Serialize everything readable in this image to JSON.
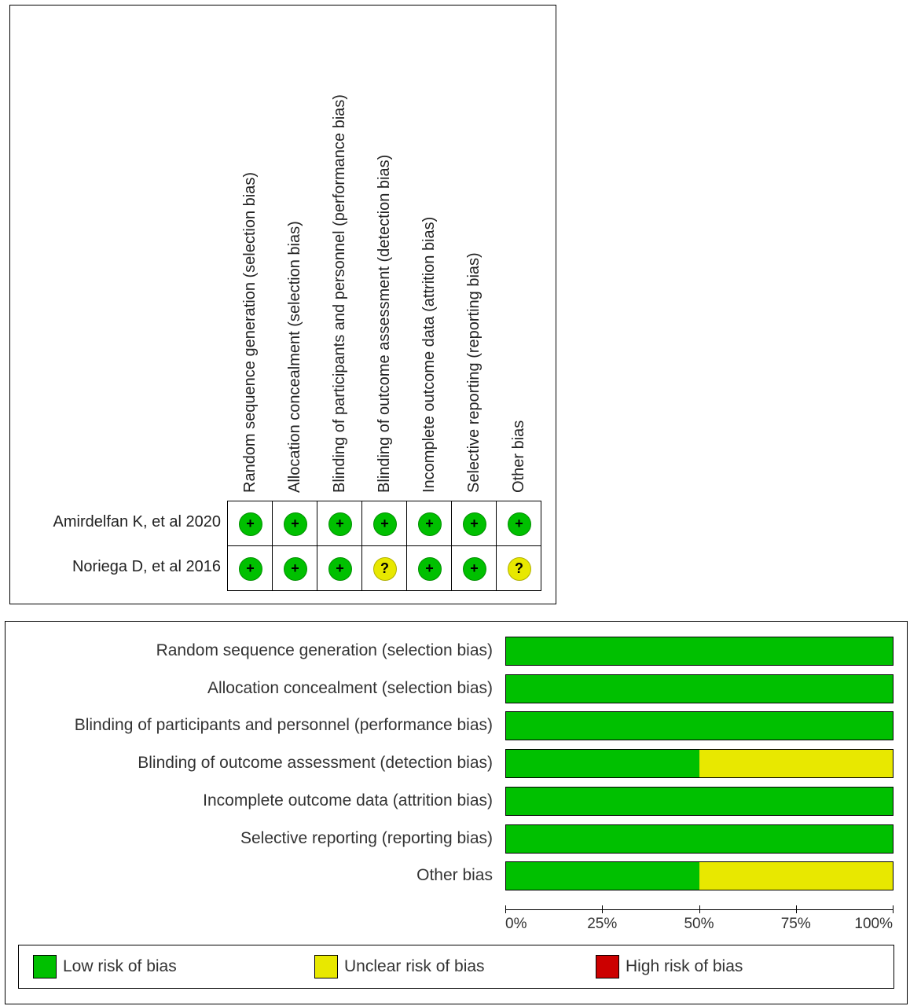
{
  "colors": {
    "low": "#00c000",
    "unclear": "#e8e800",
    "high": "#cc0000"
  },
  "chart_data": [
    {
      "type": "table",
      "columns": [
        "Random sequence generation (selection bias)",
        "Allocation concealment (selection bias)",
        "Blinding of participants and personnel (performance bias)",
        "Blinding of outcome assessment (detection bias)",
        "Incomplete outcome data (attrition bias)",
        "Selective reporting (reporting bias)",
        "Other bias"
      ],
      "rows": [
        {
          "study": "Amirdelfan K, et al 2020",
          "ratings": [
            "low",
            "low",
            "low",
            "low",
            "low",
            "low",
            "low"
          ]
        },
        {
          "study": "Noriega D, et al 2016",
          "ratings": [
            "low",
            "low",
            "low",
            "unclear",
            "low",
            "low",
            "unclear"
          ]
        }
      ],
      "symbols": {
        "low": "+",
        "unclear": "?",
        "high": "−"
      }
    },
    {
      "type": "bar",
      "stacked": true,
      "orientation": "horizontal",
      "categories": [
        "Random sequence generation (selection bias)",
        "Allocation concealment (selection bias)",
        "Blinding of participants and personnel (performance bias)",
        "Blinding of outcome assessment (detection bias)",
        "Incomplete outcome data (attrition bias)",
        "Selective reporting (reporting bias)",
        "Other bias"
      ],
      "series": [
        {
          "name": "Low risk of bias",
          "key": "low",
          "values": [
            100,
            100,
            100,
            50,
            100,
            100,
            50
          ]
        },
        {
          "name": "Unclear risk of bias",
          "key": "unclear",
          "values": [
            0,
            0,
            0,
            50,
            0,
            0,
            50
          ]
        },
        {
          "name": "High risk of bias",
          "key": "high",
          "values": [
            0,
            0,
            0,
            0,
            0,
            0,
            0
          ]
        }
      ],
      "xlim": [
        0,
        100
      ],
      "ticks": [
        "0%",
        "25%",
        "50%",
        "75%",
        "100%"
      ],
      "tick_values": [
        0,
        25,
        50,
        75,
        100
      ],
      "legend_position": "bottom"
    }
  ]
}
